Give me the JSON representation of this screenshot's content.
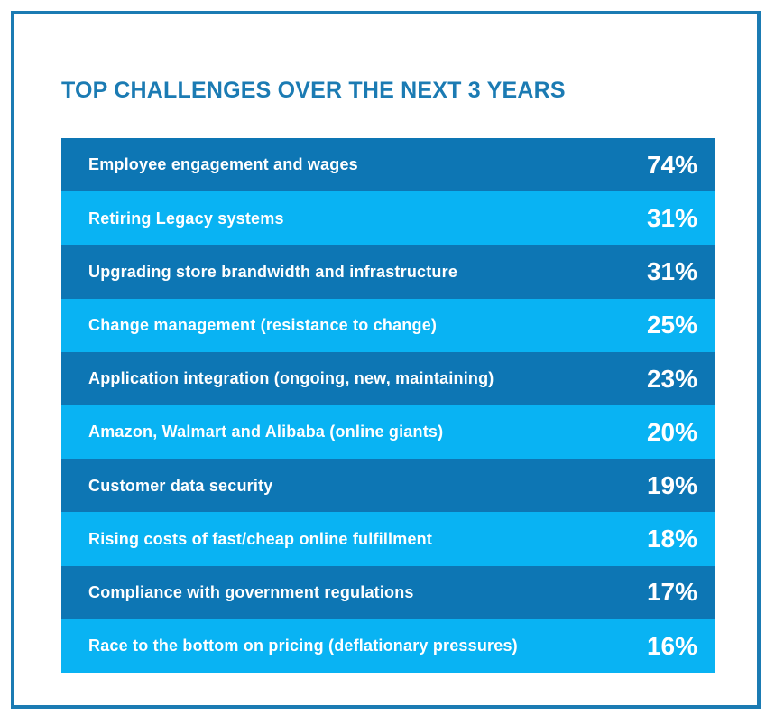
{
  "chart_data": {
    "type": "table",
    "title": "TOP CHALLENGES OVER THE NEXT 3 YEARS",
    "categories": [
      "Employee engagement and wages",
      "Retiring Legacy systems",
      "Upgrading store brandwidth and infrastructure",
      "Change management (resistance to change)",
      "Application integration (ongoing, new, maintaining)",
      "Amazon, Walmart and Alibaba (online giants)",
      "Customer data security",
      "Rising costs of fast/cheap online fulfillment",
      "Compliance with government regulations",
      "Race to the bottom on pricing (deflationary pressures)"
    ],
    "values": [
      74,
      31,
      31,
      25,
      23,
      20,
      19,
      18,
      17,
      16
    ],
    "value_labels": [
      "74%",
      "31%",
      "31%",
      "25%",
      "23%",
      "20%",
      "19%",
      "18%",
      "17%",
      "16%"
    ]
  },
  "colors": {
    "accent": "#1b7bb3",
    "row_dark": "#0d76b4",
    "row_light": "#09b3f3",
    "text_on_row": "#ffffff"
  }
}
